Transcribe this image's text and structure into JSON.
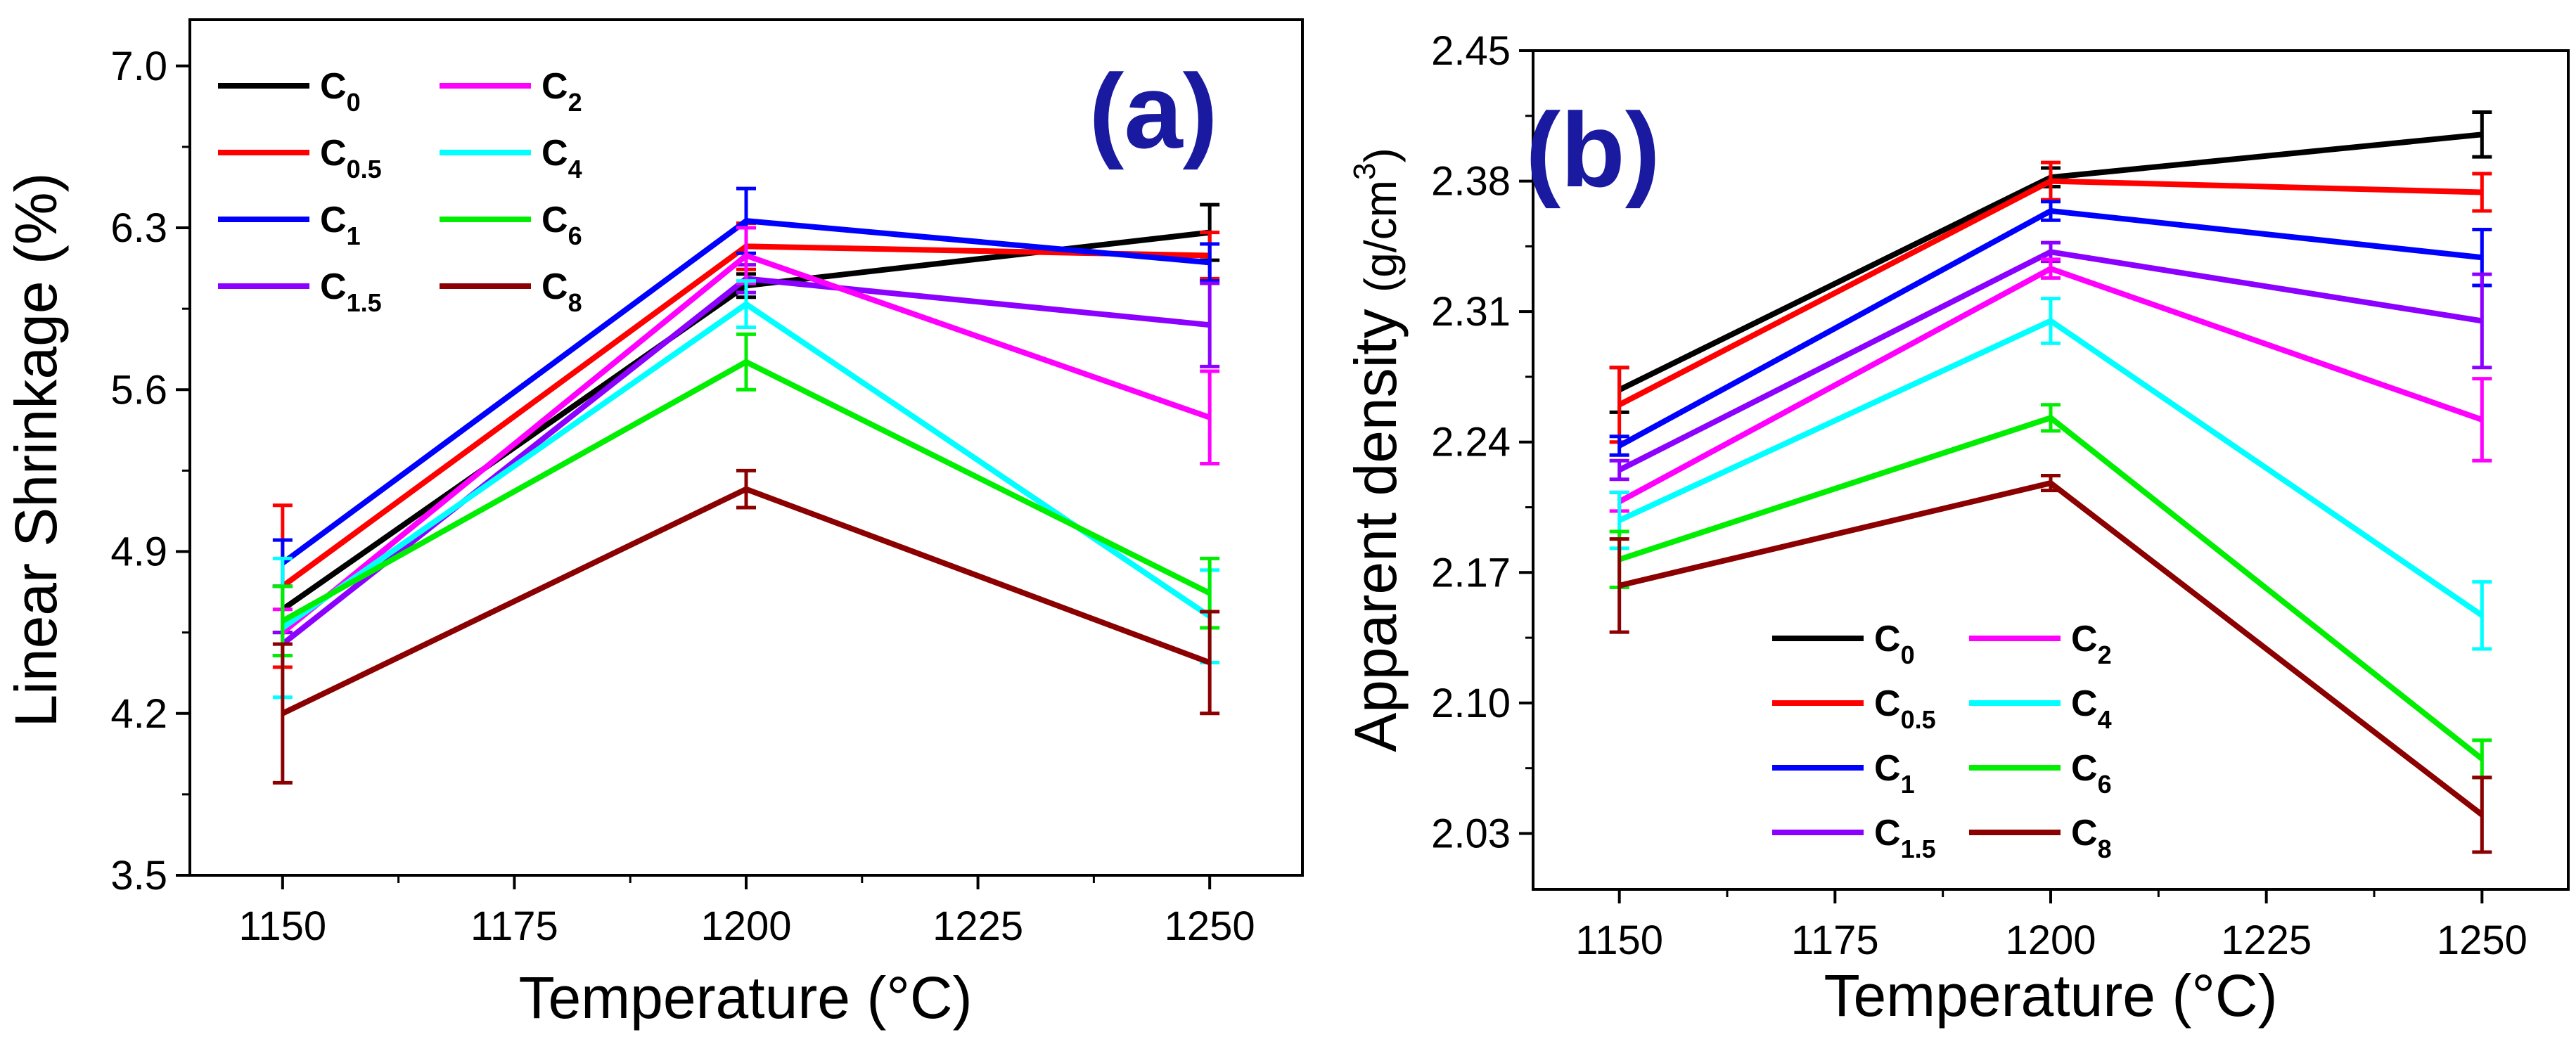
{
  "colors": {
    "C0": "#000000",
    "C0.5": "#ff0000",
    "C1": "#0000ff",
    "C1.5": "#8b00ff",
    "C2": "#ff00ff",
    "C4": "#00ffff",
    "C6": "#00ee00",
    "C8": "#8b0000",
    "panel_label": "#1a1aa0"
  },
  "chart_data": [
    {
      "type": "line",
      "panel_label": "(a)",
      "xlabel": "Temperature (°C)",
      "ylabel": "Linear Shrinkage (%)",
      "x": [
        1150,
        1200,
        1250
      ],
      "xlim": [
        1140,
        1260
      ],
      "ylim": [
        3.5,
        7.2
      ],
      "xticks": [
        "1150",
        "1175",
        "1200",
        "1225",
        "1250"
      ],
      "yticks": [
        "3.5",
        "4.2",
        "4.9",
        "5.6",
        "6.3",
        "7.0"
      ],
      "legend_position": "top-left",
      "series": [
        {
          "key": "C0",
          "name": "C",
          "sub": "0",
          "values": [
            4.65,
            6.05,
            6.28
          ],
          "err": [
            0.1,
            0.05,
            0.12
          ]
        },
        {
          "key": "C0.5",
          "name": "C",
          "sub": "0.5",
          "values": [
            4.75,
            6.22,
            6.18
          ],
          "err": [
            0.35,
            0.1,
            0.1
          ]
        },
        {
          "key": "C1",
          "name": "C",
          "sub": "1",
          "values": [
            4.85,
            6.33,
            6.15
          ],
          "err": [
            0.1,
            0.14,
            0.08
          ]
        },
        {
          "key": "C1.5",
          "name": "C",
          "sub": "1.5",
          "values": [
            4.5,
            6.08,
            5.88
          ],
          "err": [
            0.05,
            0.06,
            0.18
          ]
        },
        {
          "key": "C2",
          "name": "C",
          "sub": "2",
          "values": [
            4.55,
            6.18,
            5.48
          ],
          "err": [
            0.1,
            0.12,
            0.2
          ]
        },
        {
          "key": "C4",
          "name": "C",
          "sub": "4",
          "values": [
            4.57,
            5.97,
            4.62
          ],
          "err": [
            0.3,
            0.1,
            0.2
          ]
        },
        {
          "key": "C6",
          "name": "C",
          "sub": "6",
          "values": [
            4.6,
            5.72,
            4.72
          ],
          "err": [
            0.15,
            0.12,
            0.15
          ]
        },
        {
          "key": "C8",
          "name": "C",
          "sub": "8",
          "values": [
            4.2,
            5.17,
            4.42
          ],
          "err": [
            0.3,
            0.08,
            0.22
          ]
        }
      ]
    },
    {
      "type": "line",
      "panel_label": "(b)",
      "xlabel": "Temperature (°C)",
      "ylabel_main": "Apparent density ",
      "ylabel_unit": "(g/cm",
      "ylabel_sup": "3",
      "ylabel_end": ")",
      "x": [
        1150,
        1200,
        1250
      ],
      "xlim": [
        1140,
        1260
      ],
      "ylim": [
        2.0,
        2.45
      ],
      "xticks": [
        "1150",
        "1175",
        "1200",
        "1225",
        "1250"
      ],
      "yticks": [
        "2.03",
        "2.10",
        "2.17",
        "2.24",
        "2.31",
        "2.38",
        "2.45"
      ],
      "legend_position": "bottom-center",
      "series": [
        {
          "key": "C0",
          "name": "C",
          "sub": "0",
          "values": [
            2.268,
            2.382,
            2.405
          ],
          "err": [
            0.012,
            0.005,
            0.012
          ]
        },
        {
          "key": "C0.5",
          "name": "C",
          "sub": "0.5",
          "values": [
            2.26,
            2.38,
            2.374
          ],
          "err": [
            0.02,
            0.01,
            0.01
          ]
        },
        {
          "key": "C1",
          "name": "C",
          "sub": "1",
          "values": [
            2.238,
            2.364,
            2.339
          ],
          "err": [
            0.005,
            0.005,
            0.015
          ]
        },
        {
          "key": "C1.5",
          "name": "C",
          "sub": "1.5",
          "values": [
            2.225,
            2.342,
            2.305
          ],
          "err": [
            0.005,
            0.005,
            0.025
          ]
        },
        {
          "key": "C2",
          "name": "C",
          "sub": "2",
          "values": [
            2.208,
            2.333,
            2.252
          ],
          "err": [
            0.005,
            0.005,
            0.022
          ]
        },
        {
          "key": "C4",
          "name": "C",
          "sub": "4",
          "values": [
            2.198,
            2.305,
            2.147
          ],
          "err": [
            0.015,
            0.012,
            0.018
          ]
        },
        {
          "key": "C6",
          "name": "C",
          "sub": "6",
          "values": [
            2.177,
            2.253,
            2.07
          ],
          "err": [
            0.015,
            0.007,
            0.01
          ]
        },
        {
          "key": "C8",
          "name": "C",
          "sub": "8",
          "values": [
            2.163,
            2.218,
            2.04
          ],
          "err": [
            0.025,
            0.004,
            0.02
          ]
        }
      ]
    }
  ]
}
